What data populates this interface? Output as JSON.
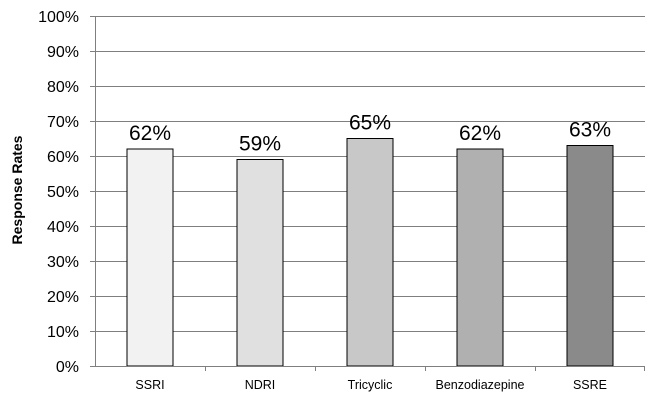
{
  "chart_data": {
    "type": "bar",
    "categories": [
      "SSRI",
      "NDRI",
      "Tricyclic",
      "Benzodiazepine",
      "SSRE"
    ],
    "values": [
      62,
      59,
      65,
      62,
      63
    ],
    "data_labels": [
      "62%",
      "59%",
      "65%",
      "62%",
      "63%"
    ],
    "title": "",
    "xlabel": "",
    "ylabel": "Response  Rates",
    "ylim": [
      0,
      100
    ],
    "y_ticks": [
      0,
      10,
      20,
      30,
      40,
      50,
      60,
      70,
      80,
      90,
      100
    ],
    "y_tick_labels": [
      "0%",
      "10%",
      "20%",
      "30%",
      "40%",
      "50%",
      "60%",
      "70%",
      "80%",
      "90%",
      "100%"
    ],
    "grid": true,
    "legend": "none",
    "bar_colors": [
      "#f2f2f2",
      "#e0e0e0",
      "#c8c8c8",
      "#b0b0b0",
      "#8a8a8a"
    ],
    "bar_edge_color": "#000000",
    "gridline_color": "#7f7f7f"
  }
}
